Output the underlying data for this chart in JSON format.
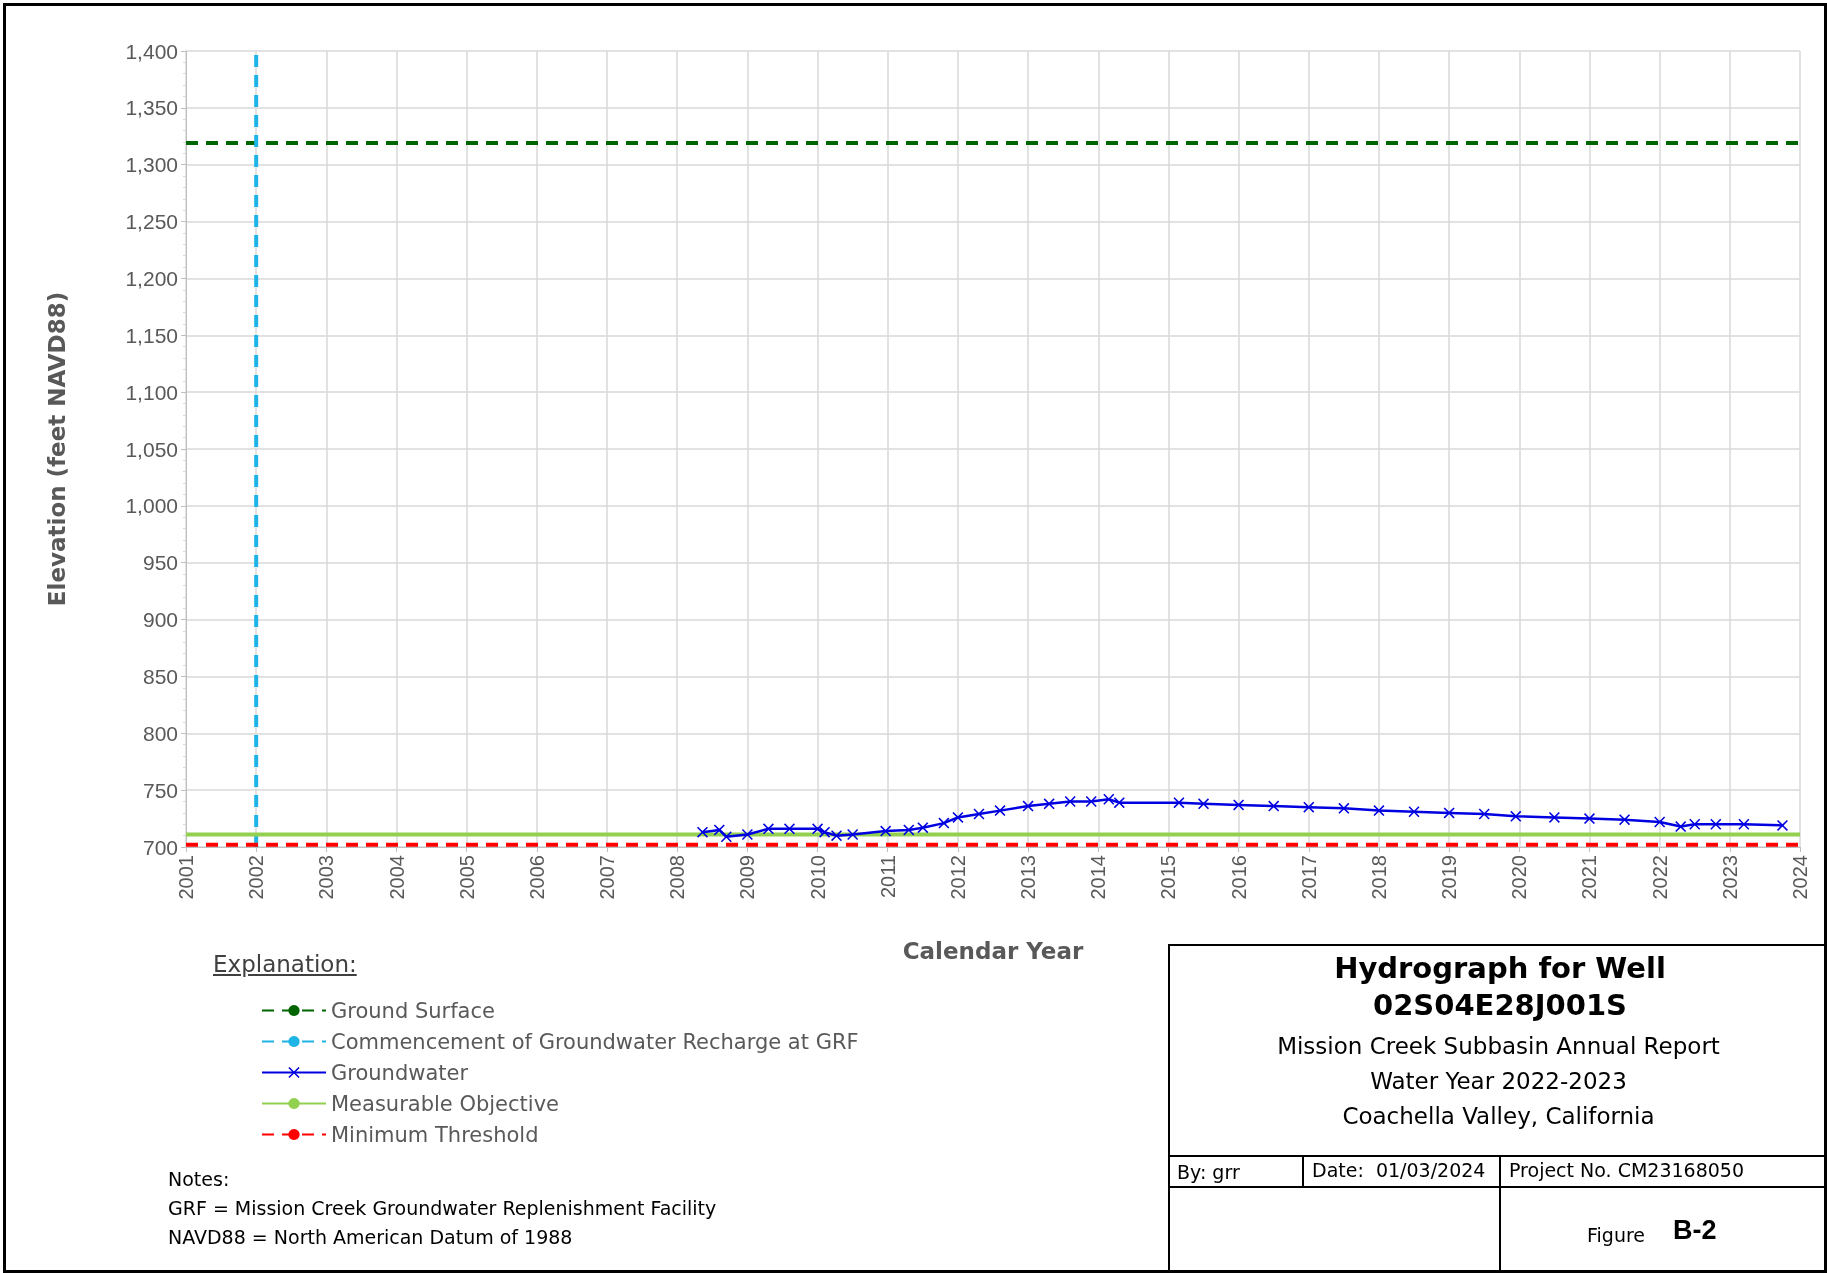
{
  "chart_data": {
    "type": "line",
    "title": "Hydrograph for Well 02S04E28J001S",
    "subtitle": "Mission Creek Subbasin Annual Report",
    "xlabel": "Calendar Year",
    "ylabel": "Elevation (feet NAVD88)",
    "legend_title": "Explanation:",
    "legend": "bottom left",
    "grid": true,
    "xlim": [
      2001,
      2024
    ],
    "xticks": [
      2001,
      2002,
      2003,
      2004,
      2005,
      2006,
      2007,
      2008,
      2009,
      2010,
      2011,
      2012,
      2013,
      2014,
      2015,
      2016,
      2017,
      2018,
      2019,
      2020,
      2021,
      2022,
      2023,
      2024
    ],
    "ylim": [
      700,
      1400
    ],
    "yticks": [
      {
        "value": 700,
        "label": "700"
      },
      {
        "value": 750,
        "label": "750"
      },
      {
        "value": 800,
        "label": "800"
      },
      {
        "value": 850,
        "label": "850"
      },
      {
        "value": 900,
        "label": "900"
      },
      {
        "value": 950,
        "label": "950"
      },
      {
        "value": 1000,
        "label": "1,000"
      },
      {
        "value": 1050,
        "label": "1,050"
      },
      {
        "value": 1100,
        "label": "1,100"
      },
      {
        "value": 1150,
        "label": "1,150"
      },
      {
        "value": 1200,
        "label": "1,200"
      },
      {
        "value": 1250,
        "label": "1,250"
      },
      {
        "value": 1300,
        "label": "1,300"
      },
      {
        "value": 1350,
        "label": "1,350"
      },
      {
        "value": 1400,
        "label": "1,400"
      }
    ],
    "series": [
      {
        "name": "Ground Surface",
        "color": "#006400",
        "line_style": "dashed",
        "marker": "none",
        "x": [
          2001,
          2024
        ],
        "values": [
          1319,
          1319
        ]
      },
      {
        "name": "Commencement of Groundwater Recharge at GRF",
        "color": "#1fb4e6",
        "line_style": "dashed",
        "marker": "none",
        "x": [
          2002,
          2002
        ],
        "values": [
          700,
          1400
        ]
      },
      {
        "name": "Groundwater",
        "color": "#0000e0",
        "line_style": "solid",
        "marker": "cross",
        "x": [
          2008.36,
          2008.6,
          2008.7,
          2009.0,
          2009.3,
          2009.6,
          2010.0,
          2010.1,
          2010.27,
          2010.5,
          2010.97,
          2011.3,
          2011.5,
          2011.8,
          2012.0,
          2012.3,
          2012.6,
          2013.0,
          2013.3,
          2013.6,
          2013.9,
          2014.15,
          2014.3,
          2015.15,
          2015.5,
          2016.0,
          2016.5,
          2017.0,
          2017.5,
          2018.0,
          2018.5,
          2019.0,
          2019.5,
          2019.95,
          2020.5,
          2021.0,
          2021.5,
          2022.0,
          2022.3,
          2022.5,
          2022.8,
          2023.2,
          2023.75
        ],
        "values": [
          713,
          715,
          709,
          711,
          716,
          716,
          716,
          713,
          710,
          711,
          714,
          715,
          717,
          721,
          726,
          729,
          732,
          736,
          738,
          740,
          740,
          742,
          739,
          739,
          738,
          737,
          736,
          735,
          734,
          732,
          731,
          730,
          729,
          727,
          726,
          725,
          724,
          722,
          718,
          720,
          720,
          720,
          719
        ]
      },
      {
        "name": "Measurable Objective",
        "color": "#92d050",
        "line_style": "solid",
        "marker": "none",
        "x": [
          2001,
          2024
        ],
        "values": [
          711,
          711
        ]
      },
      {
        "name": "Minimum Threshold",
        "color": "#ff0000",
        "line_style": "dashed",
        "marker": "none",
        "x": [
          2001,
          2024
        ],
        "values": [
          702,
          702
        ]
      }
    ],
    "annotations": [
      "Water Year 2022-2023",
      "Coachella Valley, California",
      "By: grr",
      "Date:  01/03/2024",
      "Project No. CM23168050",
      "Figure",
      "B-2",
      "Notes:",
      "GRF = Mission Creek Groundwater Replenishment Facility",
      "NAVD88 = North American Datum of 1988"
    ]
  }
}
